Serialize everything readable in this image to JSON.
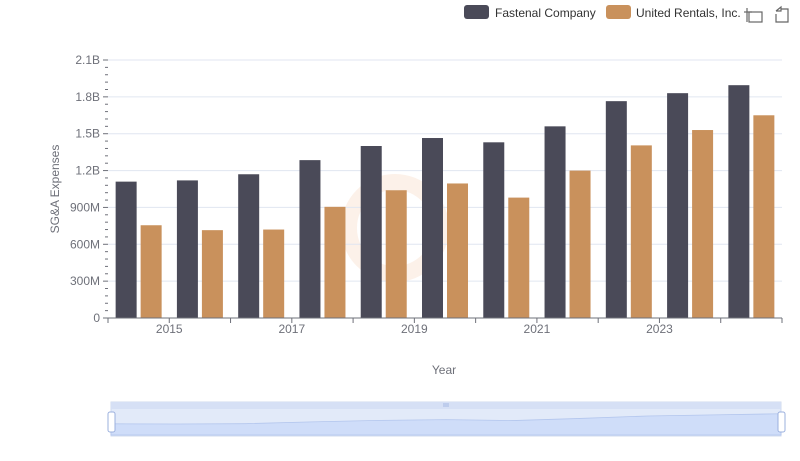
{
  "toolbox": {
    "zoom_icon": "zoom-icon",
    "restore_icon": "restore-icon"
  },
  "chart_data": {
    "type": "bar",
    "title": "",
    "xlabel": "Year",
    "ylabel": "SG&A Expenses",
    "categories": [
      "2014",
      "2015",
      "2016",
      "2017",
      "2018",
      "2019",
      "2020",
      "2021",
      "2022",
      "2023",
      "2024"
    ],
    "x_tick_labels": [
      "2015",
      "2017",
      "2019",
      "2021",
      "2023"
    ],
    "y_tick_labels": [
      "0",
      "300M",
      "600M",
      "900M",
      "1.2B",
      "1.5B",
      "1.8B",
      "2.1B"
    ],
    "ylim": [
      0,
      2100000000
    ],
    "series": [
      {
        "name": "Fastenal Company",
        "color": "#4a4a58",
        "values": [
          1110000000,
          1120000000,
          1170000000,
          1285000000,
          1400000000,
          1465000000,
          1430000000,
          1560000000,
          1765000000,
          1830000000,
          1895000000
        ]
      },
      {
        "name": "United Rentals, Inc.",
        "color": "#c9915c",
        "values": [
          755000000,
          715000000,
          720000000,
          905000000,
          1040000000,
          1095000000,
          980000000,
          1200000000,
          1405000000,
          1530000000,
          1650000000
        ]
      }
    ],
    "legend_position": "top-right",
    "grid": true,
    "data_zoom": true
  }
}
